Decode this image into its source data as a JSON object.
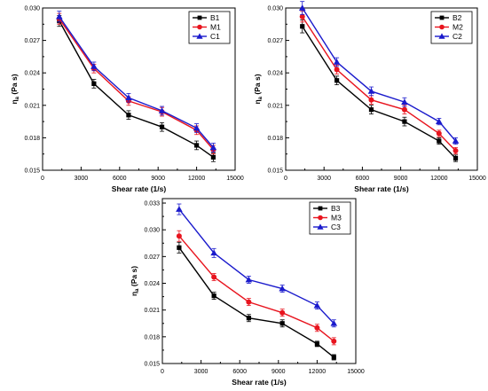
{
  "chart_data": [
    {
      "type": "line",
      "xlabel": "Shear rate (1/s)",
      "ylabel_main": "η",
      "ylabel_sub": "a",
      "ylabel_unit": " (Pa s)",
      "xlim": [
        0,
        15000
      ],
      "ylim": [
        0.015,
        0.03
      ],
      "xticks": [
        "0",
        "3000",
        "6000",
        "9000",
        "12000",
        "15000"
      ],
      "yticks": [
        "0.015",
        "0.018",
        "0.021",
        "0.024",
        "0.027",
        "0.030"
      ],
      "grid": false,
      "legend_position": "top-right",
      "x": [
        1300,
        4000,
        6700,
        9300,
        12000,
        13300
      ],
      "series": [
        {
          "name": "B1",
          "marker": "square",
          "color": "#000000",
          "values": [
            0.0288,
            0.023,
            0.0201,
            0.019,
            0.0173,
            0.0162
          ],
          "error": [
            0.0005,
            0.0004,
            0.0004,
            0.0004,
            0.0004,
            0.0004
          ]
        },
        {
          "name": "M1",
          "marker": "circle",
          "color": "#e8141e",
          "values": [
            0.029,
            0.0244,
            0.0214,
            0.0204,
            0.0187,
            0.0169
          ],
          "error": [
            0.0005,
            0.0004,
            0.0004,
            0.0004,
            0.0004,
            0.0004
          ]
        },
        {
          "name": "C1",
          "marker": "triangle",
          "color": "#1a1acc",
          "values": [
            0.0292,
            0.0246,
            0.0217,
            0.0205,
            0.0189,
            0.0171
          ],
          "error": [
            0.0005,
            0.0004,
            0.0004,
            0.0004,
            0.0004,
            0.0004
          ]
        }
      ]
    },
    {
      "type": "line",
      "xlabel": "Shear rate (1/s)",
      "ylabel_main": "η",
      "ylabel_sub": "a",
      "ylabel_unit": " (Pa s)",
      "xlim": [
        0,
        15000
      ],
      "ylim": [
        0.015,
        0.03
      ],
      "xticks": [
        "0",
        "3000",
        "6000",
        "9000",
        "12000",
        "15000"
      ],
      "yticks": [
        "0.015",
        "0.018",
        "0.021",
        "0.024",
        "0.027",
        "0.030"
      ],
      "grid": false,
      "legend_position": "top-right",
      "x": [
        1300,
        4000,
        6700,
        9300,
        12000,
        13300
      ],
      "series": [
        {
          "name": "B2",
          "marker": "square",
          "color": "#000000",
          "values": [
            0.0283,
            0.0233,
            0.0206,
            0.0195,
            0.0177,
            0.0161
          ],
          "error": [
            0.0006,
            0.0004,
            0.0004,
            0.0004,
            0.0003,
            0.0003
          ]
        },
        {
          "name": "M2",
          "marker": "circle",
          "color": "#e8141e",
          "values": [
            0.0292,
            0.0243,
            0.0215,
            0.0206,
            0.0184,
            0.0168
          ],
          "error": [
            0.0005,
            0.0004,
            0.0004,
            0.0004,
            0.0003,
            0.0003
          ]
        },
        {
          "name": "C2",
          "marker": "triangle",
          "color": "#1a1acc",
          "values": [
            0.03,
            0.025,
            0.0223,
            0.0213,
            0.0195,
            0.0177
          ],
          "error": [
            0.0006,
            0.0004,
            0.0004,
            0.0004,
            0.0003,
            0.0003
          ]
        }
      ]
    },
    {
      "type": "line",
      "xlabel": "Shear rate (1/s)",
      "ylabel_main": "η",
      "ylabel_sub": "a",
      "ylabel_unit": " (Pa s)",
      "xlim": [
        0,
        15000
      ],
      "ylim": [
        0.015,
        0.0335
      ],
      "xticks": [
        "0",
        "3000",
        "6000",
        "9000",
        "12000",
        "15000"
      ],
      "yticks": [
        "0.015",
        "0.018",
        "0.021",
        "0.024",
        "0.027",
        "0.030",
        "0.033"
      ],
      "grid": false,
      "legend_position": "top-right",
      "x": [
        1300,
        4000,
        6700,
        9300,
        12000,
        13300
      ],
      "series": [
        {
          "name": "B3",
          "marker": "square",
          "color": "#000000",
          "values": [
            0.028,
            0.0226,
            0.0201,
            0.0195,
            0.0172,
            0.0157
          ],
          "error": [
            0.0006,
            0.0004,
            0.0004,
            0.0004,
            0.0003,
            0.0003
          ]
        },
        {
          "name": "M3",
          "marker": "circle",
          "color": "#e8141e",
          "values": [
            0.0293,
            0.0247,
            0.0219,
            0.0207,
            0.019,
            0.0175
          ],
          "error": [
            0.0006,
            0.0004,
            0.0004,
            0.0004,
            0.0004,
            0.0004
          ]
        },
        {
          "name": "C3",
          "marker": "triangle",
          "color": "#1a1acc",
          "values": [
            0.0323,
            0.0274,
            0.0244,
            0.0234,
            0.0215,
            0.0195
          ],
          "error": [
            0.0006,
            0.0005,
            0.0004,
            0.0004,
            0.0004,
            0.0004
          ]
        }
      ]
    }
  ]
}
